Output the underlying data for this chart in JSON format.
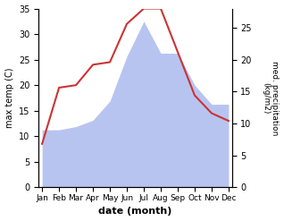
{
  "months": [
    "Jan",
    "Feb",
    "Mar",
    "Apr",
    "May",
    "Jun",
    "Jul",
    "Aug",
    "Sep",
    "Oct",
    "Nov",
    "Dec"
  ],
  "month_positions": [
    0,
    1,
    2,
    3,
    4,
    5,
    6,
    7,
    8,
    9,
    10,
    11
  ],
  "temp": [
    8.5,
    19.5,
    20.0,
    24.0,
    24.5,
    32.0,
    35.0,
    35.0,
    26.5,
    18.0,
    14.5,
    13.0
  ],
  "precip": [
    9.0,
    9.0,
    9.5,
    10.5,
    13.5,
    20.5,
    26.0,
    21.0,
    21.0,
    16.0,
    13.0,
    13.0
  ],
  "temp_color": "#cc3333",
  "precip_fill_color": "#b8c4f0",
  "temp_ylim": [
    0,
    35
  ],
  "precip_ylim": [
    0,
    28
  ],
  "temp_yticks": [
    0,
    5,
    10,
    15,
    20,
    25,
    30,
    35
  ],
  "precip_yticks": [
    0,
    5,
    10,
    15,
    20,
    25
  ],
  "xlabel": "date (month)",
  "ylabel_left": "max temp (C)",
  "ylabel_right": "med. precipitation\n(kg/m2)"
}
